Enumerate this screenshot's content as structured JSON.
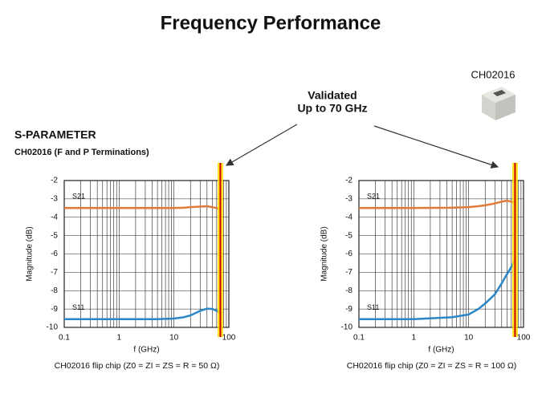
{
  "header": {
    "title": "Frequency Performance"
  },
  "image_label": "CH02016",
  "callout": [
    "Validated",
    "Up to 70 GHz"
  ],
  "section": {
    "title": "S-PARAMETER",
    "subtitle": "CH02016 (F and P Terminations)"
  },
  "chart_data": [
    {
      "type": "line",
      "x_scale": "log",
      "xlabel": "f (GHz)",
      "ylabel": "Magnitude (dB)",
      "caption": "CH02016 flip chip (Z0 = ZI = ZS = R = 50 Ω)",
      "x": [
        0.1,
        1,
        5,
        10,
        15,
        20,
        30,
        40,
        50,
        60,
        70
      ],
      "xlim": [
        0.1,
        100
      ],
      "xticks": [
        0.1,
        1,
        10,
        100
      ],
      "ylim": [
        -10,
        -2
      ],
      "yticks": [
        -2,
        -3,
        -4,
        -5,
        -6,
        -7,
        -8,
        -9,
        -10
      ],
      "grid": true,
      "marker_x": 70,
      "marker_color": "#cc0000",
      "series": [
        {
          "name": "S21",
          "color": "#e07a3a",
          "values": [
            -3.5,
            -3.5,
            -3.5,
            -3.5,
            -3.48,
            -3.45,
            -3.42,
            -3.4,
            -3.45,
            -3.5,
            -3.6
          ]
        },
        {
          "name": "S11",
          "color": "#2a86c4",
          "values": [
            -9.55,
            -9.55,
            -9.55,
            -9.52,
            -9.45,
            -9.35,
            -9.1,
            -8.98,
            -9.0,
            -9.1,
            -9.2
          ]
        }
      ]
    },
    {
      "type": "line",
      "x_scale": "log",
      "xlabel": "f (GHz)",
      "ylabel": "Magnitude (dB)",
      "caption": "CH02016 flip chip (Z0 = ZI = ZS = R = 100 Ω)",
      "x": [
        0.1,
        1,
        5,
        10,
        15,
        20,
        30,
        40,
        50,
        60,
        70
      ],
      "xlim": [
        0.1,
        100
      ],
      "xticks": [
        0.1,
        1,
        10,
        100
      ],
      "ylim": [
        -10,
        -2
      ],
      "yticks": [
        -2,
        -3,
        -4,
        -5,
        -6,
        -7,
        -8,
        -9,
        -10
      ],
      "grid": true,
      "marker_x": 70,
      "marker_color": "#cc0000",
      "series": [
        {
          "name": "S21",
          "color": "#e07a3a",
          "values": [
            -3.5,
            -3.5,
            -3.48,
            -3.45,
            -3.4,
            -3.35,
            -3.25,
            -3.15,
            -3.1,
            -3.15,
            -3.2
          ]
        },
        {
          "name": "S11",
          "color": "#2a86c4",
          "values": [
            -9.55,
            -9.55,
            -9.45,
            -9.3,
            -9.0,
            -8.7,
            -8.2,
            -7.6,
            -7.1,
            -6.7,
            -6.3
          ]
        }
      ]
    }
  ]
}
